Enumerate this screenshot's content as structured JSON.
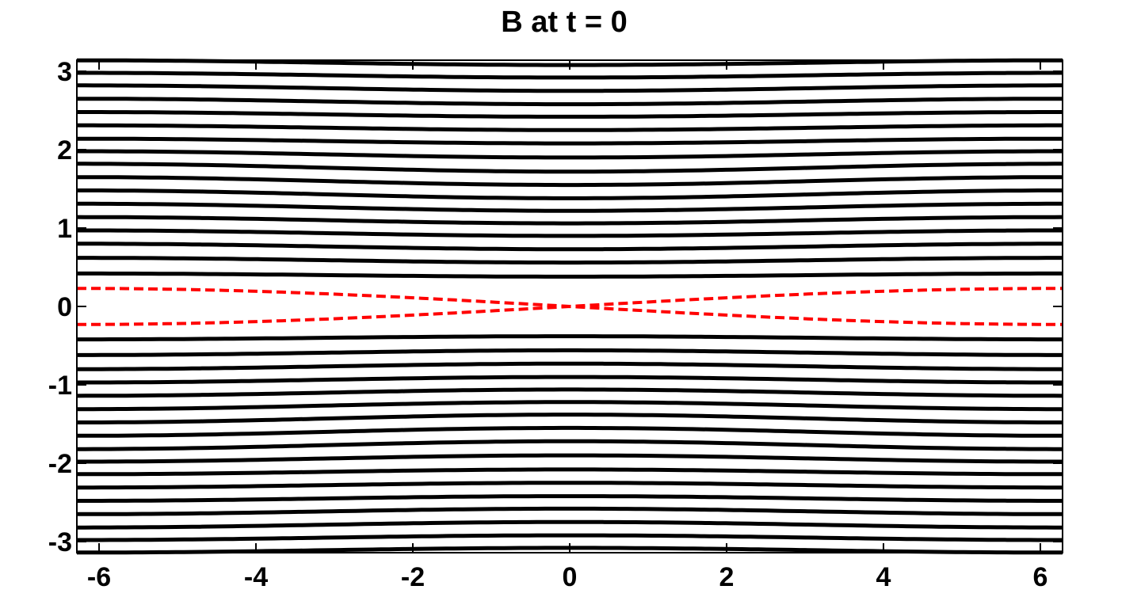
{
  "chart_data": {
    "type": "line",
    "title": "B at t = 0",
    "xlabel": "",
    "ylabel": "",
    "xlim": [
      -6.2832,
      6.2832
    ],
    "ylim": [
      -3.1416,
      3.1416
    ],
    "xticks": [
      -6,
      -4,
      -2,
      0,
      2,
      4,
      6
    ],
    "yticks": [
      -3,
      -2,
      -1,
      0,
      1,
      2,
      3
    ],
    "grid": false,
    "field_lines": {
      "description_units": "y(x) = A * sqrt(y0^2 + k*(1 - cos(x/2)))",
      "color": "#000000",
      "y_at_x0": [
        0.38,
        0.56,
        0.73,
        0.9,
        1.06,
        1.22,
        1.38,
        1.55,
        1.72,
        1.9,
        2.08,
        2.25,
        2.42,
        2.58,
        2.75,
        2.92,
        3.08
      ],
      "y_at_xedge": [
        0.42,
        0.62,
        0.8,
        0.97,
        1.14,
        1.31,
        1.48,
        1.65,
        1.82,
        1.98,
        2.14,
        2.31,
        2.48,
        2.65,
        2.82,
        2.98,
        3.14
      ]
    },
    "separatrix": {
      "color": "#ff0000",
      "style": "dashed",
      "y_at_xedge": 0.23,
      "y_at_x0": 0.0
    }
  }
}
